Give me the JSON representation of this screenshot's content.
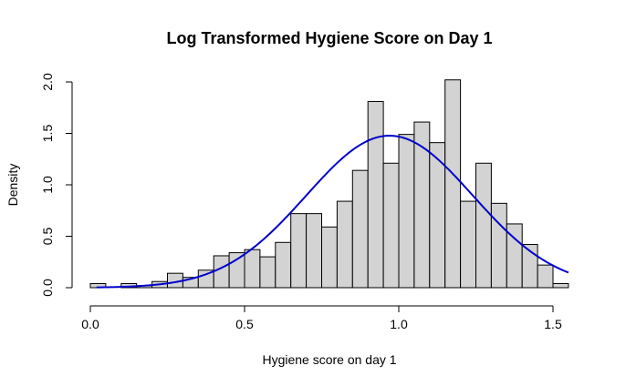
{
  "chart_data": {
    "type": "bar",
    "title": "Log Transformed Hygiene Score on Day 1",
    "xlabel": "Hygiene score on day 1",
    "ylabel": "Density",
    "xlim": [
      0,
      1.55
    ],
    "ylim": [
      0,
      2.0
    ],
    "x_ticks": [
      0.0,
      0.5,
      1.0,
      1.5
    ],
    "x_tick_labels": [
      "0.0",
      "0.5",
      "1.0",
      "1.5"
    ],
    "y_ticks": [
      0.0,
      0.5,
      1.0,
      1.5,
      2.0
    ],
    "y_tick_labels": [
      "0.0",
      "0.5",
      "1.0",
      "1.5",
      "2.0"
    ],
    "bin_width": 0.05,
    "bins_start": [
      0.0,
      0.05,
      0.1,
      0.15,
      0.2,
      0.25,
      0.3,
      0.35,
      0.4,
      0.45,
      0.5,
      0.55,
      0.6,
      0.65,
      0.7,
      0.75,
      0.8,
      0.85,
      0.9,
      0.95,
      1.0,
      1.05,
      1.1,
      1.15,
      1.2,
      1.25,
      1.3,
      1.35,
      1.4,
      1.45,
      1.5
    ],
    "density": [
      0.04,
      0.0,
      0.04,
      0.02,
      0.06,
      0.14,
      0.1,
      0.17,
      0.31,
      0.34,
      0.37,
      0.3,
      0.44,
      0.72,
      0.72,
      0.59,
      0.84,
      1.14,
      1.81,
      1.21,
      1.49,
      1.61,
      1.41,
      2.02,
      0.84,
      1.21,
      0.82,
      0.62,
      0.42,
      0.22,
      0.04
    ],
    "density_curve": {
      "color": "#0000cd",
      "mean": 0.97,
      "sd": 0.27,
      "x_range": [
        0.02,
        1.55
      ]
    },
    "bar_fill": "#d3d3d3",
    "bar_stroke": "#000000",
    "grid": false,
    "legend": "none"
  }
}
